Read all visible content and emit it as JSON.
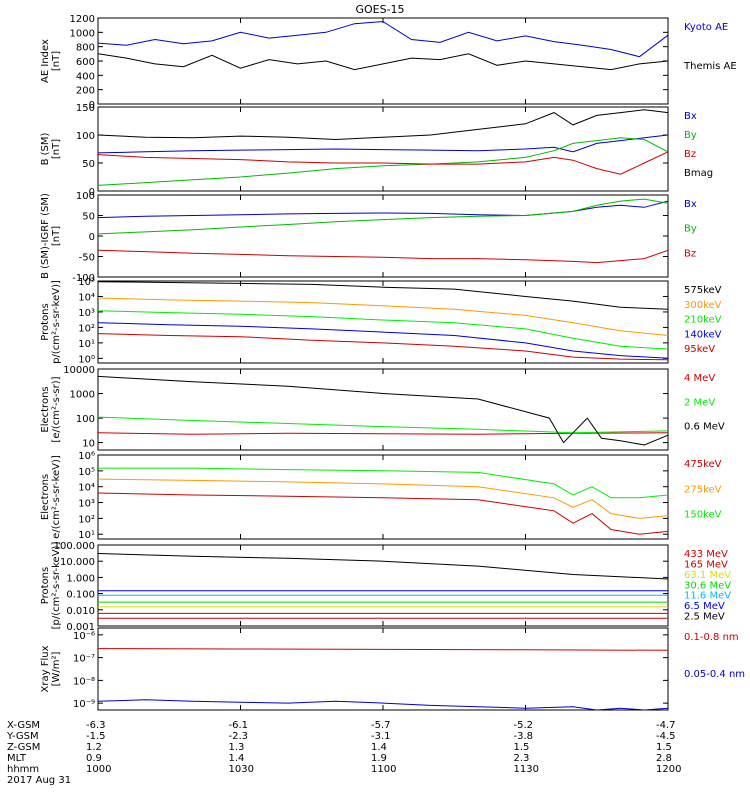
{
  "title": "GOES-15",
  "date_label": "2017 Aug 31",
  "x_ticks": [
    "1000",
    "1030",
    "1100",
    "1130",
    "1200"
  ],
  "footer_rows": [
    {
      "label": "X-GSM",
      "values": [
        "-6.3",
        "-6.1",
        "-5.7",
        "-5.2",
        "-4.7"
      ]
    },
    {
      "label": "Y-GSM",
      "values": [
        "-1.5",
        "-2.3",
        "-3.1",
        "-3.8",
        "-4.5"
      ]
    },
    {
      "label": "Z-GSM",
      "values": [
        "1.2",
        "1.3",
        "1.4",
        "1.5",
        "1.5"
      ]
    },
    {
      "label": "MLT",
      "values": [
        "0.9",
        "1.4",
        "1.9",
        "2.3",
        "2.8"
      ]
    },
    {
      "label": "hhmm",
      "values": [
        "1000",
        "1030",
        "1100",
        "1130",
        "1200"
      ]
    }
  ],
  "chart_data": [
    {
      "type": "line",
      "ylabel": [
        "AE Index",
        "[nT]"
      ],
      "ylim": [
        0,
        1200
      ],
      "yscale": "linear",
      "ytick_values": [
        0,
        200,
        400,
        600,
        800,
        1000,
        1200
      ],
      "ytick_labels": [
        "0",
        "200",
        "400",
        "600",
        "800",
        "1000",
        "1200"
      ],
      "series": [
        {
          "name": "Kyoto AE",
          "color": "#0000cc",
          "x": [
            0,
            6,
            12,
            18,
            24,
            30,
            36,
            42,
            48,
            54,
            60,
            66,
            72,
            78,
            84,
            90,
            96,
            102,
            108,
            114,
            120
          ],
          "y": [
            850,
            820,
            900,
            840,
            880,
            1000,
            920,
            960,
            1000,
            1120,
            1150,
            900,
            860,
            1000,
            880,
            950,
            870,
            820,
            760,
            660,
            960
          ]
        },
        {
          "name": "Themis AE",
          "color": "#000000",
          "x": [
            0,
            6,
            12,
            18,
            24,
            30,
            36,
            42,
            48,
            54,
            60,
            66,
            72,
            78,
            84,
            90,
            96,
            102,
            108,
            114,
            120
          ],
          "y": [
            700,
            640,
            560,
            520,
            680,
            500,
            620,
            560,
            600,
            480,
            560,
            640,
            620,
            700,
            540,
            600,
            560,
            520,
            480,
            560,
            600
          ]
        }
      ]
    },
    {
      "type": "line",
      "ylabel": [
        "B (SM)",
        "[nT]"
      ],
      "ylim": [
        0,
        150
      ],
      "yscale": "linear",
      "ytick_values": [
        0,
        50,
        100,
        150
      ],
      "ytick_labels": [
        "0",
        "50",
        "100",
        "150"
      ],
      "series": [
        {
          "name": "Bx",
          "color": "#0000cc",
          "x": [
            0,
            10,
            20,
            30,
            40,
            50,
            60,
            70,
            80,
            90,
            96,
            100,
            105,
            110,
            115,
            120
          ],
          "y": [
            68,
            70,
            72,
            73,
            74,
            75,
            74,
            73,
            72,
            75,
            78,
            70,
            85,
            90,
            95,
            100
          ]
        },
        {
          "name": "By",
          "color": "#00bb00",
          "x": [
            0,
            10,
            20,
            30,
            40,
            50,
            60,
            70,
            80,
            90,
            96,
            100,
            105,
            110,
            115,
            120
          ],
          "y": [
            10,
            15,
            20,
            25,
            32,
            40,
            45,
            48,
            52,
            60,
            72,
            85,
            90,
            95,
            92,
            70
          ]
        },
        {
          "name": "Bz",
          "color": "#cc0000",
          "x": [
            0,
            10,
            20,
            30,
            40,
            50,
            60,
            70,
            80,
            90,
            96,
            100,
            105,
            110,
            115,
            120
          ],
          "y": [
            65,
            60,
            58,
            56,
            52,
            50,
            50,
            48,
            48,
            52,
            60,
            55,
            40,
            30,
            50,
            70
          ]
        },
        {
          "name": "Bmag",
          "color": "#000000",
          "x": [
            0,
            10,
            20,
            30,
            40,
            50,
            60,
            70,
            80,
            90,
            96,
            100,
            105,
            110,
            115,
            120
          ],
          "y": [
            100,
            96,
            95,
            98,
            96,
            92,
            96,
            100,
            110,
            120,
            140,
            118,
            135,
            140,
            145,
            140
          ]
        }
      ]
    },
    {
      "type": "line",
      "ylabel": [
        "B (SM)-IGRF (SM)",
        "[nT]"
      ],
      "ylim": [
        -100,
        100
      ],
      "yscale": "linear",
      "ytick_values": [
        -100,
        -50,
        0,
        50,
        100
      ],
      "ytick_labels": [
        "-100",
        "-50",
        "0",
        "50",
        "100"
      ],
      "series": [
        {
          "name": "Bx",
          "color": "#0000cc",
          "x": [
            0,
            10,
            20,
            30,
            40,
            50,
            60,
            70,
            80,
            90,
            100,
            105,
            110,
            115,
            120
          ],
          "y": [
            45,
            48,
            50,
            52,
            54,
            55,
            56,
            55,
            52,
            50,
            60,
            70,
            75,
            70,
            85
          ]
        },
        {
          "name": "By",
          "color": "#00bb00",
          "x": [
            0,
            10,
            20,
            30,
            40,
            50,
            60,
            70,
            80,
            90,
            100,
            105,
            110,
            115,
            120
          ],
          "y": [
            5,
            10,
            15,
            22,
            28,
            35,
            40,
            45,
            48,
            50,
            60,
            75,
            85,
            90,
            80
          ]
        },
        {
          "name": "Bz",
          "color": "#cc0000",
          "x": [
            0,
            10,
            20,
            30,
            40,
            50,
            60,
            70,
            80,
            90,
            100,
            105,
            110,
            115,
            120
          ],
          "y": [
            -35,
            -38,
            -42,
            -45,
            -48,
            -50,
            -52,
            -55,
            -55,
            -58,
            -62,
            -65,
            -60,
            -55,
            -35
          ]
        }
      ]
    },
    {
      "type": "line",
      "ylabel": [
        "Protons",
        "p/(cm²-s-sr-keV)]"
      ],
      "ylim": [
        0.5,
        100000
      ],
      "yscale": "log",
      "ytick_values": [
        1,
        10,
        100,
        1000,
        10000,
        100000
      ],
      "ytick_labels": [
        "10⁰",
        "10¹",
        "10²",
        "10³",
        "10⁴",
        "10⁵"
      ],
      "series": [
        {
          "name": "575keV",
          "color": "#000000",
          "x": [
            0,
            15,
            30,
            45,
            60,
            75,
            90,
            100,
            110,
            120
          ],
          "y": [
            90000,
            80000,
            70000,
            60000,
            40000,
            30000,
            10000,
            5000,
            2000,
            1500
          ]
        },
        {
          "name": "300keV",
          "color": "#ff9900",
          "x": [
            0,
            15,
            30,
            45,
            60,
            75,
            90,
            100,
            110,
            120
          ],
          "y": [
            8000,
            6000,
            5000,
            4000,
            2500,
            1500,
            600,
            200,
            60,
            30
          ]
        },
        {
          "name": "210keV",
          "color": "#00ee00",
          "x": [
            0,
            15,
            30,
            45,
            60,
            75,
            90,
            100,
            110,
            120
          ],
          "y": [
            1200,
            900,
            700,
            500,
            300,
            200,
            80,
            20,
            6,
            4
          ]
        },
        {
          "name": "140keV",
          "color": "#0000dd",
          "x": [
            0,
            15,
            30,
            45,
            60,
            75,
            90,
            100,
            110,
            120
          ],
          "y": [
            200,
            150,
            120,
            80,
            50,
            30,
            10,
            3,
            1.5,
            1
          ]
        },
        {
          "name": "95keV",
          "color": "#cc0000",
          "x": [
            0,
            15,
            30,
            45,
            60,
            75,
            90,
            100,
            110,
            120
          ],
          "y": [
            40,
            30,
            25,
            15,
            10,
            6,
            3,
            1.2,
            0.9,
            0.8
          ]
        }
      ]
    },
    {
      "type": "line",
      "ylabel": [
        "Electrons",
        "[e/(cm²-s-sr)]"
      ],
      "ylim": [
        5,
        10000
      ],
      "yscale": "log",
      "ytick_values": [
        10,
        100,
        1000,
        10000
      ],
      "ytick_labels": [
        "10",
        "100",
        "1000",
        "10000"
      ],
      "series": [
        {
          "name": "4 MeV",
          "color": "#cc0000",
          "x": [
            0,
            20,
            40,
            60,
            80,
            100,
            120
          ],
          "y": [
            25,
            22,
            24,
            23,
            22,
            24,
            25
          ]
        },
        {
          "name": "2 MeV",
          "color": "#00ee00",
          "x": [
            0,
            20,
            40,
            60,
            80,
            100,
            120
          ],
          "y": [
            110,
            80,
            60,
            45,
            35,
            25,
            30
          ]
        },
        {
          "name": "0.6 MeV",
          "color": "#000000",
          "x": [
            0,
            20,
            40,
            60,
            80,
            95,
            98,
            103,
            106,
            110,
            115,
            120
          ],
          "y": [
            5000,
            3000,
            2000,
            1000,
            600,
            100,
            10,
            100,
            15,
            12,
            8,
            20
          ]
        }
      ]
    },
    {
      "type": "line",
      "ylabel": [
        "Electrons",
        "e/(cm²-s-sr-keV)]"
      ],
      "ylim": [
        5,
        1000000
      ],
      "yscale": "log",
      "ytick_values": [
        10,
        100,
        1000,
        10000,
        100000,
        1000000
      ],
      "ytick_labels": [
        "10¹",
        "10²",
        "10³",
        "10⁴",
        "10⁵",
        "10⁶"
      ],
      "series": [
        {
          "name": "475keV",
          "color": "#cc0000",
          "x": [
            0,
            20,
            40,
            60,
            80,
            96,
            100,
            104,
            108,
            114,
            120
          ],
          "y": [
            4000,
            3000,
            2500,
            2000,
            1500,
            300,
            50,
            200,
            20,
            10,
            15
          ]
        },
        {
          "name": "275keV",
          "color": "#ff9900",
          "x": [
            0,
            20,
            40,
            60,
            80,
            96,
            100,
            104,
            108,
            114,
            120
          ],
          "y": [
            30000,
            25000,
            20000,
            15000,
            10000,
            2000,
            500,
            1500,
            200,
            100,
            150
          ]
        },
        {
          "name": "150keV",
          "color": "#00ee00",
          "x": [
            0,
            20,
            40,
            60,
            80,
            96,
            100,
            104,
            108,
            114,
            120
          ],
          "y": [
            150000,
            150000,
            120000,
            100000,
            80000,
            15000,
            3000,
            10000,
            2000,
            2000,
            3000
          ]
        }
      ]
    },
    {
      "type": "line",
      "ylabel": [
        "Protons",
        "[p/(cm²-s-sr-keV)]"
      ],
      "ylim": [
        0.001,
        100
      ],
      "yscale": "log",
      "ytick_values": [
        0.001,
        0.01,
        0.1,
        1,
        10,
        100
      ],
      "ytick_labels": [
        "0.001",
        "0.010",
        "0.100",
        "1.000",
        "10.000",
        "100.000"
      ],
      "series": [
        {
          "name": "433 MeV",
          "color": "#cc0000",
          "x": [
            0,
            40,
            80,
            120
          ],
          "y": [
            0.003,
            0.003,
            0.003,
            0.003
          ]
        },
        {
          "name": "165 MeV",
          "color": "#cc0000",
          "x": [
            0,
            40,
            80,
            120
          ],
          "y": [
            0.006,
            0.006,
            0.006,
            0.006
          ]
        },
        {
          "name": "63.1 MeV",
          "color": "#dddd00",
          "x": [
            0,
            40,
            80,
            120
          ],
          "y": [
            0.015,
            0.015,
            0.015,
            0.015
          ]
        },
        {
          "name": "30.6 MeV",
          "color": "#00dd00",
          "x": [
            0,
            40,
            80,
            120
          ],
          "y": [
            0.03,
            0.03,
            0.03,
            0.03
          ]
        },
        {
          "name": "11.6 MeV",
          "color": "#00bbff",
          "x": [
            0,
            40,
            80,
            120
          ],
          "y": [
            0.08,
            0.08,
            0.08,
            0.08
          ]
        },
        {
          "name": "6.5 MeV",
          "color": "#0000dd",
          "x": [
            0,
            40,
            80,
            120
          ],
          "y": [
            0.15,
            0.15,
            0.15,
            0.15
          ]
        },
        {
          "name": "2.5 MeV",
          "color": "#000000",
          "x": [
            0,
            20,
            40,
            60,
            80,
            100,
            120
          ],
          "y": [
            30,
            20,
            15,
            10,
            5,
            1.5,
            0.8
          ]
        }
      ]
    },
    {
      "type": "line",
      "ylabel": [
        "Xray Flux",
        "[W/m²]"
      ],
      "ylim": [
        5e-10,
        2e-06
      ],
      "yscale": "log",
      "ytick_values": [
        1e-09,
        1e-08,
        1e-07,
        1e-06
      ],
      "ytick_labels": [
        "10⁻⁹",
        "10⁻⁸",
        "10⁻⁷",
        "10⁻⁶"
      ],
      "series": [
        {
          "name": "0.1-0.8 nm",
          "color": "#cc0000",
          "x": [
            0,
            30,
            60,
            90,
            120
          ],
          "y": [
            2.5e-07,
            2.4e-07,
            2.3e-07,
            2.2e-07,
            2.1e-07
          ]
        },
        {
          "name": "0.05-0.4 nm",
          "color": "#0000cc",
          "x": [
            0,
            10,
            20,
            30,
            40,
            50,
            60,
            70,
            80,
            90,
            100,
            105,
            110,
            115,
            120
          ],
          "y": [
            1.2e-09,
            1.4e-09,
            1.2e-09,
            1.1e-09,
            1e-09,
            1.2e-09,
            1e-09,
            8e-10,
            7e-10,
            6e-10,
            7e-10,
            5e-10,
            6e-10,
            5e-10,
            6e-10
          ]
        }
      ]
    }
  ]
}
